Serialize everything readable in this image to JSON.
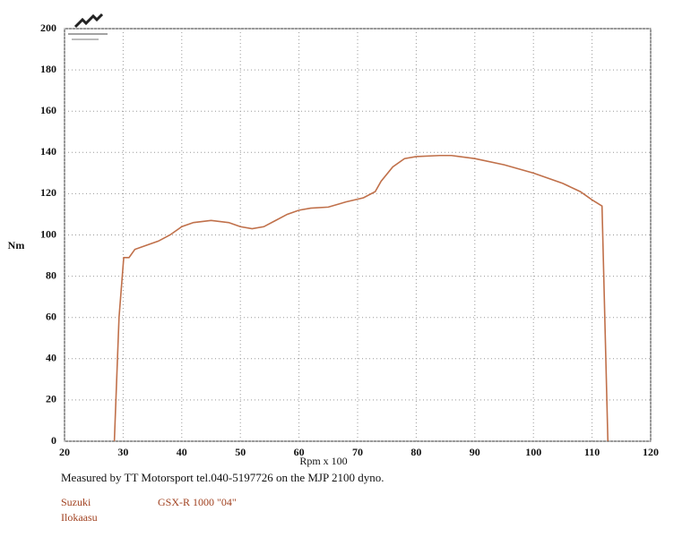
{
  "chart_data": {
    "type": "line",
    "y_label": "Nm",
    "x_label": "Rpm x 100",
    "x": [
      28.5,
      29.3,
      30.1,
      31,
      32,
      34,
      36,
      38,
      40,
      42,
      45,
      48,
      50,
      52,
      54,
      56,
      58,
      60,
      62,
      65,
      68,
      71,
      73,
      74,
      76,
      78,
      80,
      84,
      86,
      90,
      95,
      100,
      105,
      108,
      110,
      111.7,
      112.7
    ],
    "values": [
      0,
      60,
      89,
      89,
      93,
      95,
      97,
      100,
      104,
      106,
      107,
      106,
      104,
      103,
      104,
      107,
      110,
      112,
      113,
      113.5,
      116,
      118,
      121,
      126,
      133,
      137,
      138,
      138.5,
      138.5,
      137,
      134,
      130,
      125,
      121,
      117,
      114,
      0
    ],
    "color": "#c0704a",
    "xlim": [
      20,
      120
    ],
    "xticks": [
      20,
      30,
      40,
      50,
      60,
      70,
      80,
      90,
      100,
      110,
      120
    ],
    "ylim": [
      0,
      200
    ],
    "yticks": [
      0,
      20,
      40,
      60,
      80,
      100,
      120,
      140,
      160,
      180,
      200
    ],
    "grid": true,
    "caption": "Measured by TT Motorsport tel.040-5197726 on the MJP 2100 dyno.",
    "make": "Suzuki",
    "model": "GSX-R 1000 \"04\"",
    "owner": "Ilokaasu"
  }
}
